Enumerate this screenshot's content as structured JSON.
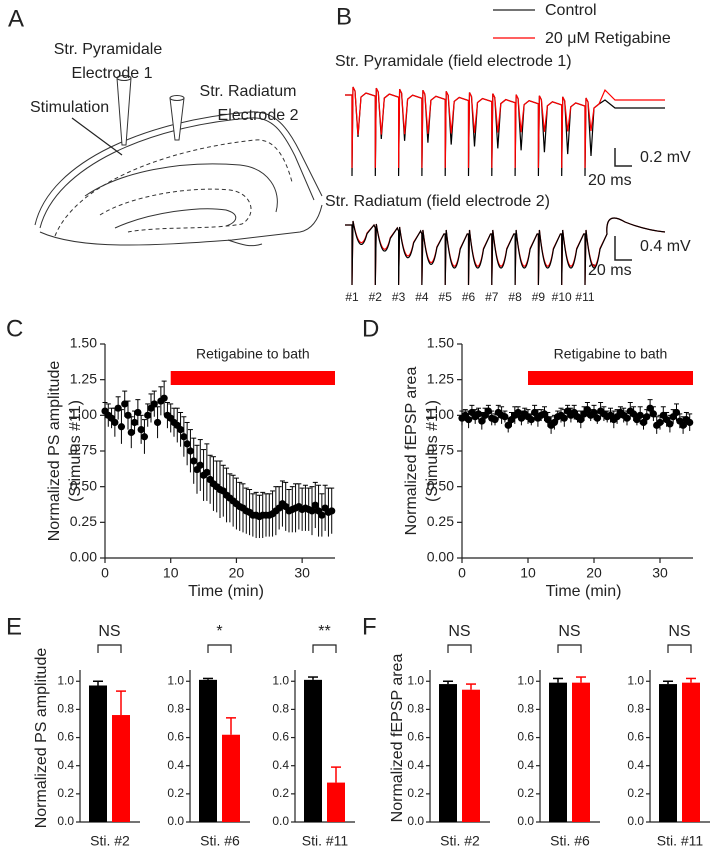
{
  "panel_labels": [
    "A",
    "B",
    "C",
    "D",
    "E",
    "F"
  ],
  "diagram": {
    "labels": [
      "Str. Pyramidale",
      "Electrode 1",
      "Str. Radiatum",
      "Electrode 2",
      "Stimulation"
    ]
  },
  "traces": {
    "legend": [
      {
        "name": "Control",
        "color": "#000000"
      },
      {
        "name": "20 μM Retigabine",
        "color": "#ff0000"
      }
    ],
    "titles": [
      "Str. Pyramidale (field electrode 1)",
      "Str. Radiatum (field electrode 2)"
    ],
    "scale_bars": [
      [
        "0.2 mV",
        "20 ms"
      ],
      [
        "0.4 mV",
        "20 ms"
      ]
    ],
    "stimuli": [
      "#1",
      "#2",
      "#3",
      "#4",
      "#5",
      "#6",
      "#7",
      "#8",
      "#9",
      "#10",
      "#11"
    ]
  },
  "chart_data": [
    {
      "type": "scatter",
      "ylabel": [
        "Normalized PS amplitude",
        "(Stimulus #11)"
      ],
      "xlabel": "Time (min)",
      "annotation": {
        "text": "Retigabine to bath",
        "start": 10,
        "end": 35
      },
      "color": "#000000",
      "xlim": [
        0,
        35
      ],
      "xticks": [
        0,
        10,
        20,
        30
      ],
      "ylim": [
        0,
        1.5
      ],
      "yticks": [
        {
          "value": 0,
          "label": "0.00"
        },
        0.25,
        {
          "value": 0.5,
          "label": "0.50"
        },
        0.75,
        {
          "value": 1,
          "label": "1.00"
        },
        1.25,
        {
          "value": 1.5,
          "label": "1.50"
        }
      ],
      "x": [
        0,
        0.5,
        1,
        1.5,
        2,
        2.5,
        3,
        3.5,
        4,
        4.5,
        5,
        5.5,
        6,
        6.5,
        7,
        7.5,
        8,
        8.5,
        9,
        9.5,
        10,
        10.5,
        11,
        11.5,
        12,
        12.5,
        13,
        13.5,
        14,
        14.5,
        15,
        15.5,
        16,
        16.5,
        17,
        17.5,
        18,
        18.5,
        19,
        19.5,
        20,
        20.5,
        21,
        21.5,
        22,
        22.5,
        23,
        23.5,
        24,
        24.5,
        25,
        25.5,
        26,
        26.5,
        27,
        27.5,
        28,
        28.5,
        29,
        29.5,
        30,
        30.5,
        31,
        31.5,
        32,
        32.5,
        33,
        33.5,
        34,
        34.5
      ],
      "values": [
        1.03,
        1.0,
        0.98,
        0.95,
        1.05,
        0.92,
        1.08,
        1.0,
        0.88,
        0.95,
        1.02,
        0.9,
        0.85,
        1.0,
        1.05,
        1.08,
        0.95,
        1.1,
        1.12,
        1.0,
        0.98,
        0.95,
        0.93,
        0.9,
        0.85,
        0.8,
        0.75,
        0.68,
        0.62,
        0.65,
        0.58,
        0.6,
        0.55,
        0.52,
        0.5,
        0.48,
        0.47,
        0.44,
        0.42,
        0.4,
        0.38,
        0.36,
        0.35,
        0.33,
        0.32,
        0.3,
        0.3,
        0.29,
        0.3,
        0.3,
        0.3,
        0.31,
        0.33,
        0.35,
        0.38,
        0.36,
        0.33,
        0.34,
        0.35,
        0.36,
        0.34,
        0.35,
        0.34,
        0.33,
        0.37,
        0.33,
        0.3,
        0.35,
        0.32,
        0.33
      ],
      "errors": [
        0.06,
        0.08,
        0.07,
        0.1,
        0.08,
        0.12,
        0.09,
        0.1,
        0.11,
        0.08,
        0.09,
        0.1,
        0.12,
        0.08,
        0.1,
        0.09,
        0.11,
        0.1,
        0.12,
        0.09,
        0.1,
        0.1,
        0.12,
        0.12,
        0.14,
        0.15,
        0.15,
        0.16,
        0.17,
        0.18,
        0.18,
        0.2,
        0.17,
        0.19,
        0.18,
        0.2,
        0.18,
        0.19,
        0.17,
        0.18,
        0.18,
        0.17,
        0.17,
        0.16,
        0.16,
        0.15,
        0.16,
        0.15,
        0.16,
        0.15,
        0.15,
        0.16,
        0.17,
        0.15,
        0.16,
        0.17,
        0.15,
        0.16,
        0.17,
        0.16,
        0.15,
        0.16,
        0.15,
        0.17,
        0.16,
        0.18,
        0.15,
        0.16,
        0.17,
        0.16
      ]
    },
    {
      "type": "scatter",
      "ylabel": [
        "Normalized fEPSP area",
        "(Stimulus #11)"
      ],
      "xlabel": "Time (min)",
      "annotation": {
        "text": "Retigabine to bath",
        "start": 10,
        "end": 35
      },
      "color": "#000000",
      "xlim": [
        0,
        35
      ],
      "xticks": [
        0,
        10,
        20,
        30
      ],
      "ylim": [
        0,
        1.5
      ],
      "yticks": [
        {
          "value": 0,
          "label": "0.00"
        },
        0.25,
        {
          "value": 0.5,
          "label": "0.50"
        },
        0.75,
        {
          "value": 1,
          "label": "1.00"
        },
        1.25,
        {
          "value": 1.5,
          "label": "1.50"
        }
      ],
      "x": [
        0,
        0.5,
        1,
        1.5,
        2,
        2.5,
        3,
        3.5,
        4,
        4.5,
        5,
        5.5,
        6,
        6.5,
        7,
        7.5,
        8,
        8.5,
        9,
        9.5,
        10,
        10.5,
        11,
        11.5,
        12,
        12.5,
        13,
        13.5,
        14,
        14.5,
        15,
        15.5,
        16,
        16.5,
        17,
        17.5,
        18,
        18.5,
        19,
        19.5,
        20,
        20.5,
        21,
        21.5,
        22,
        22.5,
        23,
        23.5,
        24,
        24.5,
        25,
        25.5,
        26,
        26.5,
        27,
        27.5,
        28,
        28.5,
        29,
        29.5,
        30,
        30.5,
        31,
        31.5,
        32,
        32.5,
        33,
        33.5,
        34,
        34.5
      ],
      "values": [
        0.98,
        1.0,
        0.97,
        1.02,
        0.99,
        1.01,
        0.96,
        1.0,
        1.03,
        0.98,
        0.97,
        1.02,
        1.0,
        0.99,
        0.93,
        0.97,
        1.0,
        1.02,
        0.98,
        1.01,
        0.99,
        0.97,
        1.02,
        0.98,
        1.0,
        1.01,
        0.97,
        0.93,
        0.95,
        0.99,
        1.0,
        0.98,
        1.03,
        1.0,
        1.02,
        0.99,
        0.97,
        1.01,
        1.04,
        1.0,
        1.02,
        0.98,
        1.03,
        1.01,
        0.99,
        1.0,
        0.97,
        0.99,
        1.02,
        1.0,
        0.98,
        1.03,
        1.01,
        0.97,
        1.0,
        0.95,
        0.99,
        1.05,
        1.01,
        0.93,
        0.95,
        1.0,
        0.97,
        0.94,
        0.99,
        1.02,
        0.96,
        0.93,
        0.97,
        0.95
      ],
      "errors": [
        0.05,
        0.04,
        0.06,
        0.05,
        0.05,
        0.04,
        0.06,
        0.05,
        0.04,
        0.05,
        0.04,
        0.05,
        0.06,
        0.04,
        0.05,
        0.05,
        0.06,
        0.04,
        0.05,
        0.04,
        0.05,
        0.04,
        0.05,
        0.06,
        0.04,
        0.05,
        0.05,
        0.06,
        0.05,
        0.04,
        0.05,
        0.06,
        0.04,
        0.05,
        0.05,
        0.04,
        0.06,
        0.05,
        0.05,
        0.04,
        0.05,
        0.04,
        0.06,
        0.05,
        0.04,
        0.05,
        0.06,
        0.05,
        0.04,
        0.05,
        0.05,
        0.06,
        0.05,
        0.04,
        0.06,
        0.05,
        0.05,
        0.06,
        0.05,
        0.06,
        0.05,
        0.06,
        0.05,
        0.06,
        0.05,
        0.06,
        0.05,
        0.06,
        0.05,
        0.06
      ]
    },
    {
      "type": "bar",
      "ylabel": "Normalized PS amplitude",
      "categories": [
        "Sti. #2"
      ],
      "annotation": "NS",
      "ylim": [
        0,
        1.08
      ],
      "yticks": [
        {
          "value": 0,
          "label": "0.0"
        },
        0.2,
        0.4,
        0.6,
        0.8,
        {
          "value": 1,
          "label": "1.0"
        }
      ],
      "series": [
        {
          "color": "#000000",
          "values": [
            0.97
          ],
          "errors": [
            0.03
          ]
        },
        {
          "color": "#ff0000",
          "values": [
            0.76
          ],
          "errors": [
            0.17
          ]
        }
      ]
    },
    {
      "type": "bar",
      "categories": [
        "Sti. #6"
      ],
      "annotation": "*",
      "ylim": [
        0,
        1.08
      ],
      "yticks": [
        {
          "value": 0,
          "label": "0.0"
        },
        0.2,
        0.4,
        0.6,
        0.8,
        {
          "value": 1,
          "label": "1.0"
        }
      ],
      "series": [
        {
          "color": "#000000",
          "values": [
            1.01
          ],
          "errors": [
            0.01
          ]
        },
        {
          "color": "#ff0000",
          "values": [
            0.62
          ],
          "errors": [
            0.12
          ]
        }
      ]
    },
    {
      "type": "bar",
      "categories": [
        "Sti. #11"
      ],
      "annotation": "**",
      "ylim": [
        0,
        1.08
      ],
      "yticks": [
        {
          "value": 0,
          "label": "0.0"
        },
        0.2,
        0.4,
        0.6,
        0.8,
        {
          "value": 1,
          "label": "1.0"
        }
      ],
      "series": [
        {
          "color": "#000000",
          "values": [
            1.01
          ],
          "errors": [
            0.02
          ]
        },
        {
          "color": "#ff0000",
          "values": [
            0.28
          ],
          "errors": [
            0.11
          ]
        }
      ]
    },
    {
      "type": "bar",
      "ylabel": "Normalized fEPSP area",
      "categories": [
        "Sti. #2"
      ],
      "annotation": "NS",
      "ylim": [
        0,
        1.08
      ],
      "yticks": [
        {
          "value": 0,
          "label": "0.0"
        },
        0.2,
        0.4,
        0.6,
        0.8,
        {
          "value": 1,
          "label": "1.0"
        }
      ],
      "series": [
        {
          "color": "#000000",
          "values": [
            0.98
          ],
          "errors": [
            0.02
          ]
        },
        {
          "color": "#ff0000",
          "values": [
            0.94
          ],
          "errors": [
            0.04
          ]
        }
      ]
    },
    {
      "type": "bar",
      "categories": [
        "Sti. #6"
      ],
      "annotation": "NS",
      "ylim": [
        0,
        1.08
      ],
      "yticks": [
        {
          "value": 0,
          "label": "0.0"
        },
        0.2,
        0.4,
        0.6,
        0.8,
        {
          "value": 1,
          "label": "1.0"
        }
      ],
      "series": [
        {
          "color": "#000000",
          "values": [
            0.99
          ],
          "errors": [
            0.03
          ]
        },
        {
          "color": "#ff0000",
          "values": [
            0.99
          ],
          "errors": [
            0.04
          ]
        }
      ]
    },
    {
      "type": "bar",
      "categories": [
        "Sti. #11"
      ],
      "annotation": "NS",
      "ylim": [
        0,
        1.08
      ],
      "yticks": [
        {
          "value": 0,
          "label": "0.0"
        },
        0.2,
        0.4,
        0.6,
        0.8,
        {
          "value": 1,
          "label": "1.0"
        }
      ],
      "series": [
        {
          "color": "#000000",
          "values": [
            0.98
          ],
          "errors": [
            0.02
          ]
        },
        {
          "color": "#ff0000",
          "values": [
            0.99
          ],
          "errors": [
            0.03
          ]
        }
      ]
    }
  ]
}
